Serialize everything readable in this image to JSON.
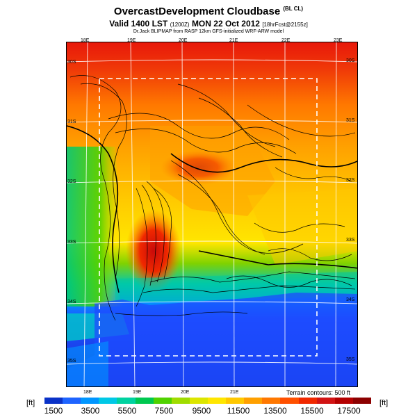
{
  "title": {
    "main": "OvercastDevelopment Cloudbase",
    "main_suffix": "(BL CL)",
    "valid": "Valid 1400 LST",
    "valid_code": "(1200Z)",
    "date": "MON 22 Oct 2012",
    "forecast_info": "[18hrFcst@2155z]",
    "credit": "Dr.Jack BLIPMAP from RASP 12km GFS-initialized WRF-ARW model"
  },
  "map": {
    "lon_labels_top": [
      "18E",
      "19E",
      "20E",
      "21E",
      "22E",
      "23E"
    ],
    "lon_labels_bottom": [
      "18E",
      "19E",
      "20E",
      "21E"
    ],
    "lat_labels_left": [
      "30S",
      "31S",
      "32S",
      "33S",
      "34S",
      "35S"
    ],
    "lat_labels_right": [
      "30S",
      "31S",
      "32S",
      "33S",
      "34S",
      "35S"
    ],
    "terrain_note": "Terrain contours: 500 ft",
    "colors": {
      "land_low": "#00c8c8",
      "land_mid": "#f0a000",
      "high": "#e02000",
      "sea": "#1e3cff",
      "box_outline": "#ffffff"
    }
  },
  "colorbar": {
    "unit_left": "[ft]",
    "unit_right": "[ft]",
    "tick_labels": [
      "1500",
      "3500",
      "5500",
      "7500",
      "9500",
      "11500",
      "13500",
      "15500",
      "17500"
    ],
    "colors": [
      "#0a32c8",
      "#1e64ff",
      "#0096ff",
      "#00c8e6",
      "#00d2a0",
      "#00c850",
      "#50d200",
      "#a0dc00",
      "#dce600",
      "#ffe600",
      "#ffc800",
      "#ffa000",
      "#ff7800",
      "#ff5000",
      "#f02800",
      "#d21414",
      "#b40000",
      "#8c0000"
    ]
  }
}
